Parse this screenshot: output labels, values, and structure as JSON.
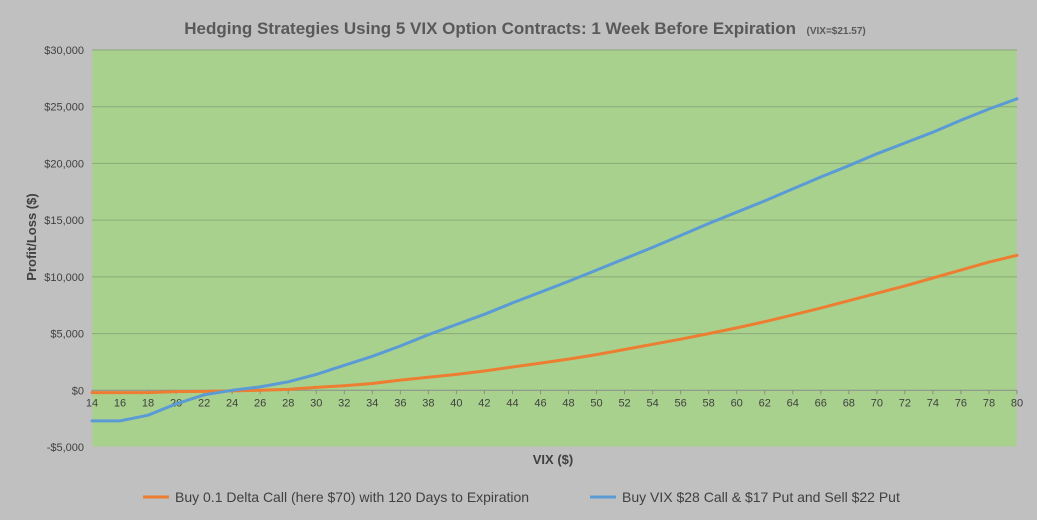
{
  "chart_data": {
    "type": "line",
    "title": "Hedging Strategies Using 5 VIX Option Contracts: 1 Week Before Expiration",
    "subtitle": "(VIX=$21.57)",
    "xlabel": "VIX ($)",
    "ylabel": "Profit/Loss ($)",
    "xlim": [
      14,
      80
    ],
    "ylim": [
      -5000,
      30000
    ],
    "x_ticks": [
      14,
      16,
      18,
      20,
      22,
      24,
      26,
      28,
      30,
      32,
      34,
      36,
      38,
      40,
      42,
      44,
      46,
      48,
      50,
      52,
      54,
      56,
      58,
      60,
      62,
      64,
      66,
      68,
      70,
      72,
      74,
      76,
      78,
      80
    ],
    "y_ticks": [
      -5000,
      0,
      5000,
      10000,
      15000,
      20000,
      25000,
      30000
    ],
    "y_tick_labels": [
      "-$5,000",
      "$0",
      "$5,000",
      "$10,000",
      "$15,000",
      "$20,000",
      "$25,000",
      "$30,000"
    ],
    "grid": true,
    "legend_position": "bottom",
    "background_color": "#a9d18e",
    "outer_background_color": "#c0c0c0",
    "x": [
      14,
      16,
      18,
      20,
      22,
      24,
      26,
      28,
      30,
      32,
      34,
      36,
      38,
      40,
      42,
      44,
      46,
      48,
      50,
      52,
      54,
      56,
      58,
      60,
      62,
      64,
      66,
      68,
      70,
      72,
      74,
      76,
      78,
      80
    ],
    "series": [
      {
        "name": "Buy 0.1 Delta Call (here $70) with 120 Days to Expiration",
        "color": "#ed7d31",
        "values": [
          -200,
          -200,
          -200,
          -120,
          -100,
          -50,
          0,
          80,
          250,
          400,
          600,
          900,
          1150,
          1400,
          1700,
          2050,
          2400,
          2750,
          3150,
          3600,
          4050,
          4500,
          5000,
          5500,
          6050,
          6650,
          7250,
          7900,
          8550,
          9200,
          9900,
          10600,
          11300,
          11900
        ]
      },
      {
        "name": "Buy VIX $28 Call & $17 Put and Sell $22 Put",
        "color": "#5b9bd5",
        "values": [
          -2700,
          -2700,
          -2200,
          -1200,
          -400,
          0,
          300,
          750,
          1400,
          2200,
          3000,
          3900,
          4900,
          5800,
          6700,
          7700,
          8650,
          9600,
          10600,
          11600,
          12600,
          13650,
          14700,
          15700,
          16700,
          17750,
          18800,
          19800,
          20850,
          21800,
          22750,
          23800,
          24800,
          25700
        ]
      }
    ]
  }
}
